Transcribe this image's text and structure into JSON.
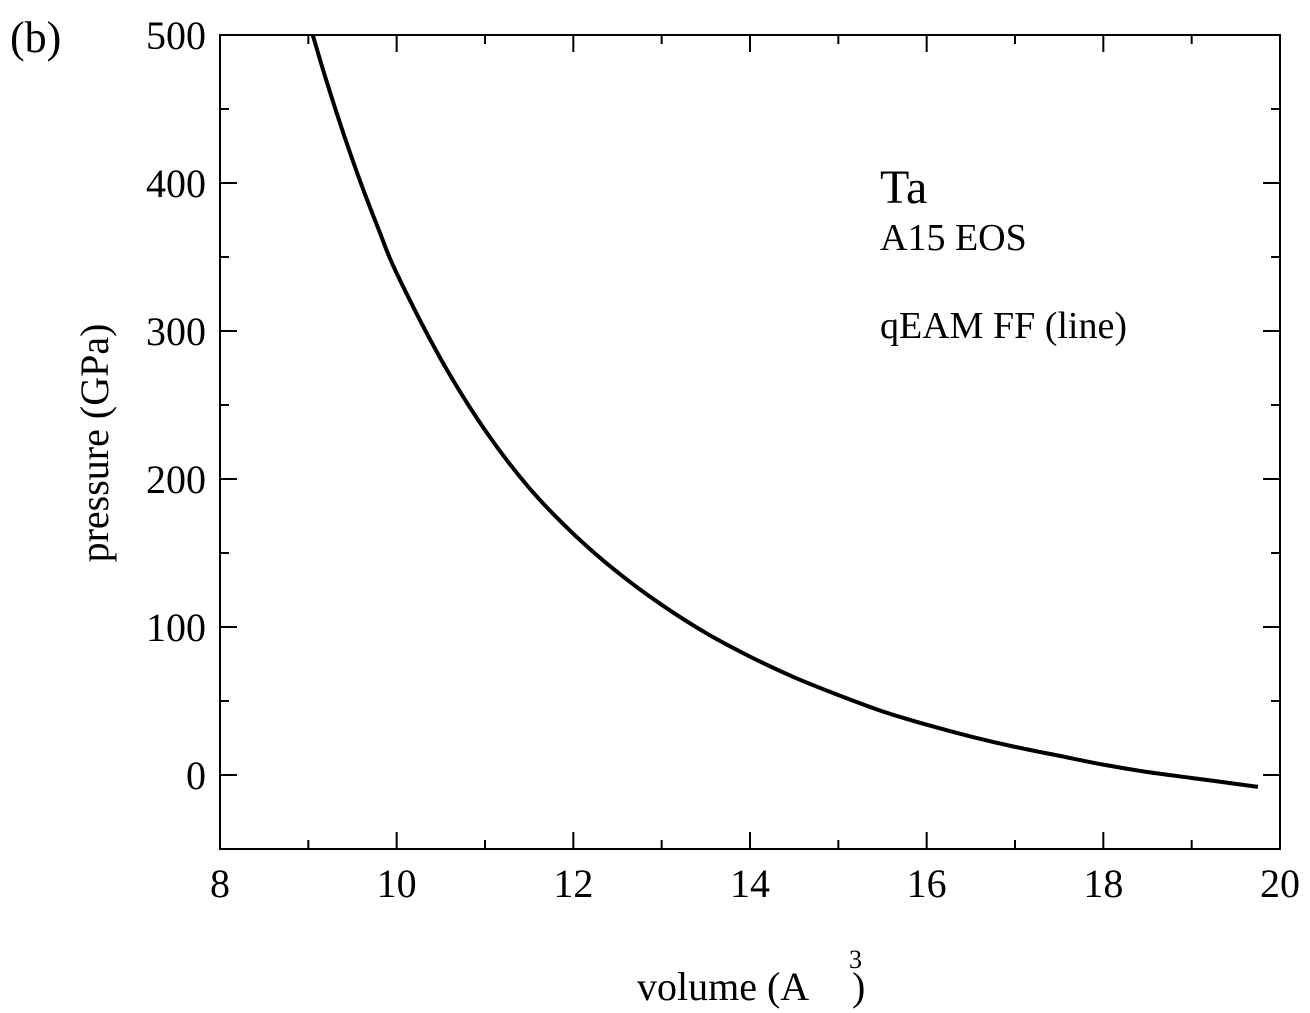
{
  "panel_label": "(b)",
  "chart_data": {
    "type": "line",
    "xlabel": {
      "prefix": "volume (A",
      "superscript": "3",
      "suffix": ")"
    },
    "ylabel": "pressure (GPa)",
    "xlim": [
      8,
      20
    ],
    "ylim": [
      -50,
      500
    ],
    "x_ticks": [
      8,
      10,
      12,
      14,
      16,
      18,
      20
    ],
    "y_ticks": [
      0,
      100,
      200,
      300,
      400,
      500
    ],
    "x_minor_step": 1,
    "y_minor_step": 50,
    "annotations": {
      "element": "Ta",
      "structure": "A15 EOS",
      "method": "qEAM FF (line)"
    },
    "series": [
      {
        "color": "#000000",
        "x": [
          9.05,
          9.2,
          9.4,
          9.6,
          9.8,
          10.0,
          10.5,
          11.0,
          11.5,
          12.0,
          12.5,
          13.0,
          13.5,
          14.0,
          14.5,
          15.0,
          15.5,
          16.0,
          16.5,
          17.0,
          17.5,
          18.0,
          18.5,
          19.0,
          19.5,
          19.75
        ],
        "y": [
          500,
          470,
          433,
          399,
          368,
          339,
          281,
          233,
          194,
          163,
          137,
          115,
          96,
          80,
          66,
          54,
          43,
          34,
          26,
          19,
          13,
          7,
          2,
          -2,
          -6,
          -8
        ]
      }
    ]
  }
}
